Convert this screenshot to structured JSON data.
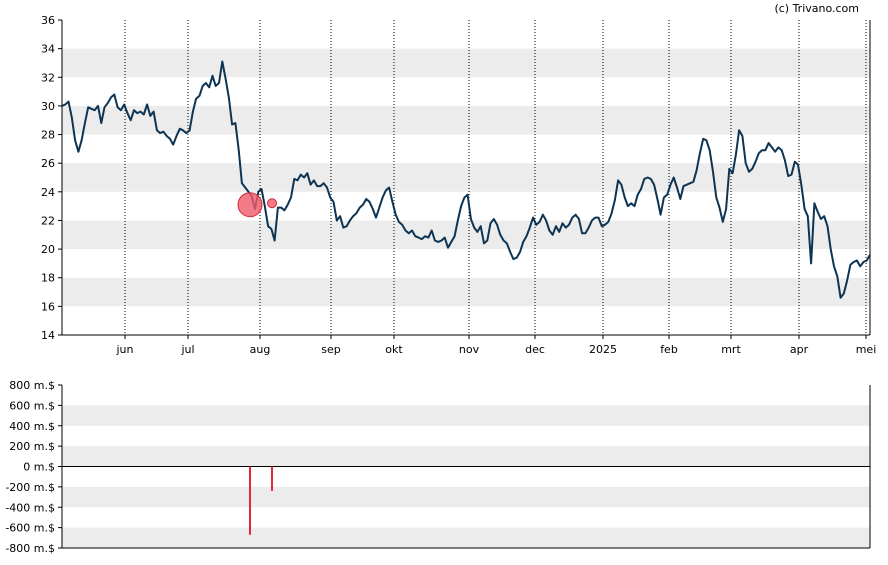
{
  "credit": "(c) Trivano.com",
  "chart_data": [
    {
      "type": "line",
      "name": "price",
      "y_ticks": [
        "14",
        "16",
        "18",
        "20",
        "22",
        "24",
        "26",
        "28",
        "30",
        "32",
        "34",
        "36"
      ],
      "ylim": [
        14,
        36
      ],
      "x_ticks": [
        "jun",
        "jul",
        "aug",
        "sep",
        "okt",
        "nov",
        "dec",
        "2025",
        "feb",
        "mrt",
        "apr",
        "mei"
      ],
      "grid": "alternating horizontal bands, dotted vertical lines at month ticks",
      "line_color": "#0d3453",
      "series": [
        {
          "values": [
            30.0,
            30.1,
            30.3,
            29.2,
            27.6,
            26.8,
            27.6,
            28.8,
            29.9,
            29.8,
            29.7,
            30.0,
            28.8,
            29.9,
            30.2,
            30.6,
            30.8,
            29.9,
            29.7,
            30.1,
            29.5,
            29.0,
            29.7,
            29.5,
            29.6,
            29.4,
            30.1,
            29.3,
            29.6,
            28.3,
            28.1,
            28.2,
            27.9,
            27.7,
            27.3,
            27.9,
            28.4,
            28.3,
            28.1,
            28.3,
            29.6,
            30.5,
            30.7,
            31.4,
            31.6,
            31.3,
            32.1,
            31.4,
            31.6,
            33.1,
            31.9,
            30.6,
            28.7,
            28.8,
            27.0,
            24.6,
            24.3,
            24.0,
            23.7,
            22.8,
            24.0,
            24.2,
            23.0,
            21.6,
            21.4,
            20.6,
            22.9,
            22.9,
            22.7,
            23.1,
            23.6,
            24.9,
            24.8,
            25.2,
            25.0,
            25.3,
            24.5,
            24.8,
            24.4,
            24.4,
            24.6,
            24.3,
            23.6,
            23.3,
            22.0,
            22.3,
            21.5,
            21.6,
            22.0,
            22.3,
            22.5,
            22.9,
            23.1,
            23.5,
            23.3,
            22.8,
            22.2,
            22.9,
            23.6,
            24.1,
            24.3,
            23.3,
            22.4,
            21.9,
            21.7,
            21.3,
            21.1,
            21.3,
            20.9,
            20.8,
            20.7,
            20.9,
            20.8,
            21.3,
            20.6,
            20.5,
            20.6,
            20.8,
            20.1,
            20.5,
            20.9,
            22.0,
            23.0,
            23.6,
            23.8,
            22.1,
            21.5,
            21.2,
            21.6,
            20.4,
            20.6,
            21.8,
            22.1,
            21.7,
            21.0,
            20.6,
            20.4,
            19.8,
            19.3,
            19.4,
            19.8,
            20.5,
            20.9,
            21.5,
            22.2,
            21.7,
            21.9,
            22.4,
            22.0,
            21.3,
            21.0,
            21.6,
            21.2,
            21.8,
            21.5,
            21.7,
            22.2,
            22.4,
            22.1,
            21.1,
            21.1,
            21.5,
            22.0,
            22.2,
            22.2,
            21.6,
            21.7,
            21.9,
            22.5,
            23.4,
            24.8,
            24.5,
            23.6,
            23.0,
            23.2,
            23.0,
            23.8,
            24.2,
            24.9,
            25.0,
            24.9,
            24.5,
            23.5,
            22.4,
            23.6,
            23.8,
            24.5,
            25.0,
            24.3,
            23.5,
            24.4,
            24.5,
            24.6,
            24.7,
            25.5,
            26.7,
            27.7,
            27.6,
            26.9,
            25.4,
            23.6,
            22.9,
            21.9,
            22.8,
            25.6,
            25.3,
            26.6,
            28.3,
            27.9,
            26.0,
            25.4,
            25.6,
            26.1,
            26.7,
            26.9,
            26.9,
            27.4,
            27.1,
            26.8,
            27.1,
            26.9,
            26.2,
            25.1,
            25.2,
            26.1,
            25.9,
            24.5,
            22.8,
            22.3,
            19.0,
            23.2,
            22.6,
            22.1,
            22.3,
            21.6,
            20.0,
            18.8,
            18.1,
            16.6,
            16.9,
            17.8,
            18.9,
            19.1,
            19.2,
            18.8,
            19.1,
            19.2,
            19.6
          ]
        }
      ],
      "markers": [
        {
          "value": 23.1,
          "size": "large",
          "color": "#f05a6a"
        },
        {
          "value": 23.2,
          "size": "small",
          "color": "#f05a6a"
        }
      ]
    },
    {
      "type": "bar",
      "name": "volume",
      "y_ticks": [
        "800 m.$",
        "600 m.$",
        "400 m.$",
        "200 m.$",
        "0 m.$",
        "-200 m.$",
        "-400 m.$",
        "-600 m.$",
        "-800 m.$"
      ],
      "ylim": [
        -800,
        800
      ],
      "bar_color": "#e8253a",
      "bars": [
        -670,
        -240
      ]
    }
  ]
}
